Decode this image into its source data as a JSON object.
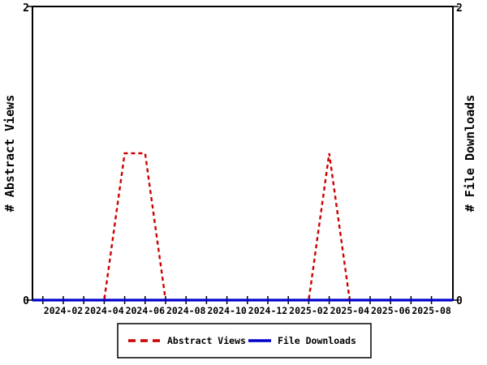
{
  "page": {
    "background": "#ffffff"
  },
  "chart_data": {
    "type": "line",
    "title": "",
    "x": [
      "2024-01",
      "2024-02",
      "2024-03",
      "2024-04",
      "2024-05",
      "2024-06",
      "2024-07",
      "2024-08",
      "2024-09",
      "2024-10",
      "2024-11",
      "2024-12",
      "2025-01",
      "2025-02",
      "2025-03",
      "2025-04",
      "2025-05",
      "2025-06",
      "2025-07",
      "2025-08",
      "2025-09"
    ],
    "x_tick_labels": [
      "2024-02",
      "2024-04",
      "2024-06",
      "2024-08",
      "2024-10",
      "2024-12",
      "2025-02",
      "2025-04",
      "2025-06",
      "2025-08"
    ],
    "series": [
      {
        "name": "Abstract Views",
        "color": "#cc0000",
        "line_style": "dashed",
        "values": [
          0,
          0,
          0,
          0,
          1,
          1,
          0,
          0,
          0,
          0,
          0,
          0,
          0,
          0,
          1,
          0,
          0,
          0,
          0,
          0,
          0
        ]
      },
      {
        "name": "File Downloads",
        "color": "#0000cc",
        "line_style": "solid",
        "values": [
          0,
          0,
          0,
          0,
          0,
          0,
          0,
          0,
          0,
          0,
          0,
          0,
          0,
          0,
          0,
          0,
          0,
          0,
          0,
          0,
          0
        ]
      }
    ],
    "ylabel_left": "# Abstract Views",
    "ylabel_right": "# File Downloads",
    "ylim": [
      0,
      2
    ],
    "y_ticks": [
      0,
      2
    ],
    "grid": false,
    "legend_position": "bottom-center",
    "axis_color": "#000000",
    "text_color": "#000000"
  }
}
